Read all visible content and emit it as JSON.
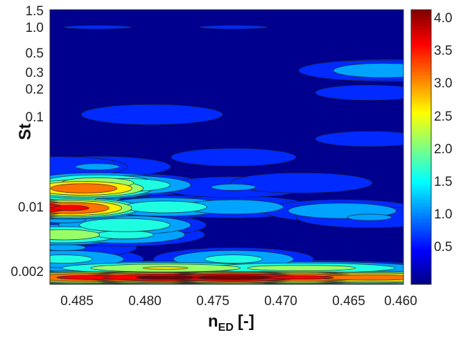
{
  "chart_data": {
    "type": "heatmap",
    "title": "",
    "xlabel": "n",
    "xlabel_subscript": "ED",
    "xlabel_unit": "[-]",
    "ylabel": "St",
    "x_direction": "reversed",
    "xlim": [
      0.4835,
      0.4575
    ],
    "y_scale": "log",
    "ylim": [
      0.0016,
      1.5
    ],
    "x_ticks": [
      0.485,
      0.48,
      0.475,
      0.47,
      0.465,
      0.46
    ],
    "x_tick_labels": [
      "0.485",
      "0.480",
      "0.475",
      "0.470",
      "0.465",
      "0.460"
    ],
    "y_ticks": [
      0.002,
      0.01,
      0.1,
      0.2,
      0.3,
      0.5,
      1.0,
      1.5
    ],
    "y_tick_labels": [
      "0.002",
      "0.01",
      "0.1",
      "0.2",
      "0.3",
      "0.5",
      "1.0",
      "1.5"
    ],
    "colorbar": {
      "colormap": "jet",
      "range": [
        0,
        4.2
      ],
      "ticks": [
        0.5,
        1.0,
        1.5,
        2.0,
        2.5,
        3.0,
        3.5,
        4.0
      ],
      "tick_labels": [
        "0.5",
        "1.0",
        "1.5",
        "2.0",
        "2.5",
        "3.0",
        "3.5",
        "4.0"
      ]
    },
    "contour_levels": [
      0.45,
      0.95,
      1.45,
      1.95,
      2.45,
      2.95,
      3.45,
      3.95
    ],
    "features": [
      {
        "x": 0.4825,
        "St": 0.0019,
        "value": 3.3
      },
      {
        "x": 0.48,
        "St": 0.0019,
        "value": 3.7
      },
      {
        "x": 0.475,
        "St": 0.0019,
        "value": 4.1
      },
      {
        "x": 0.47,
        "St": 0.0019,
        "value": 4.2
      },
      {
        "x": 0.465,
        "St": 0.0019,
        "value": 3.6
      },
      {
        "x": 0.46,
        "St": 0.0019,
        "value": 3.3
      },
      {
        "x": 0.475,
        "St": 0.0024,
        "value": 2.5
      },
      {
        "x": 0.465,
        "St": 0.0024,
        "value": 2.2
      },
      {
        "x": 0.4825,
        "St": 0.003,
        "value": 1.6
      },
      {
        "x": 0.47,
        "St": 0.003,
        "value": 1.6
      },
      {
        "x": 0.4825,
        "St": 0.004,
        "value": 1.0
      },
      {
        "x": 0.4825,
        "St": 0.0055,
        "value": 2.3
      },
      {
        "x": 0.478,
        "St": 0.0055,
        "value": 1.6
      },
      {
        "x": 0.478,
        "St": 0.007,
        "value": 1.9
      },
      {
        "x": 0.4825,
        "St": 0.008,
        "value": 1.0
      },
      {
        "x": 0.485,
        "St": 0.0107,
        "value": 4.1
      },
      {
        "x": 0.482,
        "St": 0.0107,
        "value": 3.6
      },
      {
        "x": 0.475,
        "St": 0.011,
        "value": 1.8
      },
      {
        "x": 0.47,
        "St": 0.011,
        "value": 1.3
      },
      {
        "x": 0.462,
        "St": 0.01,
        "value": 1.4
      },
      {
        "x": 0.46,
        "St": 0.0085,
        "value": 1.0
      },
      {
        "x": 0.483,
        "St": 0.014,
        "value": 1.8
      },
      {
        "x": 0.482,
        "St": 0.0175,
        "value": 2.2
      },
      {
        "x": 0.481,
        "St": 0.0175,
        "value": 3.4
      },
      {
        "x": 0.48,
        "St": 0.02,
        "value": 2.3
      },
      {
        "x": 0.478,
        "St": 0.019,
        "value": 1.9
      },
      {
        "x": 0.47,
        "St": 0.018,
        "value": 1.0
      },
      {
        "x": 0.465,
        "St": 0.02,
        "value": 0.9
      },
      {
        "x": 0.48,
        "St": 0.03,
        "value": 1.0
      },
      {
        "x": 0.483,
        "St": 0.03,
        "value": 0.9
      },
      {
        "x": 0.47,
        "St": 0.038,
        "value": 0.7
      },
      {
        "x": 0.46,
        "St": 0.06,
        "value": 0.6
      },
      {
        "x": 0.476,
        "St": 0.11,
        "value": 0.9
      },
      {
        "x": 0.459,
        "St": 0.33,
        "value": 1.3
      },
      {
        "x": 0.46,
        "St": 0.33,
        "value": 0.9
      },
      {
        "x": 0.46,
        "St": 0.19,
        "value": 0.6
      },
      {
        "x": 0.47,
        "St": 0.97,
        "value": 0.5
      },
      {
        "x": 0.48,
        "St": 0.97,
        "value": 0.5
      }
    ]
  }
}
